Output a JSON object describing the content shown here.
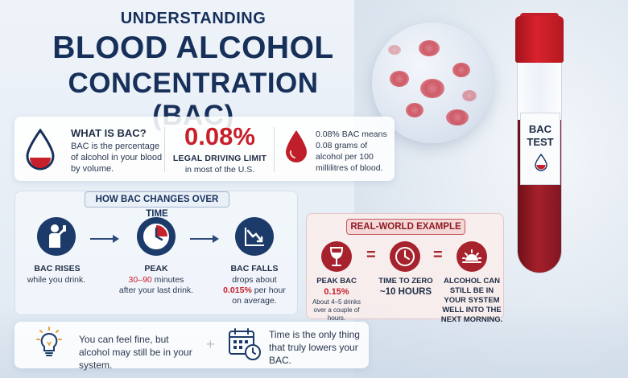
{
  "title": {
    "line1": "UNDERSTANDING",
    "line2": "BLOOD ALCOHOL",
    "line3": "CONCENTRATION (BAC)"
  },
  "tube_label": {
    "line1": "BAC",
    "line2": "TEST"
  },
  "info": {
    "what_title": "WHAT IS BAC?",
    "what_text": "BAC is the percentage of alcohol in your blood by volume.",
    "limit_value": "0.08%",
    "limit_title": "LEGAL DRIVING LIMIT",
    "limit_sub": "in most of the U.S.",
    "means_text": "0.08% BAC means 0.08 grams of alcohol per 100 millilitres of blood."
  },
  "timeline": {
    "heading": "HOW BAC CHANGES OVER TIME",
    "rises_title": "BAC RISES",
    "rises_desc": "while you drink.",
    "peak_title": "PEAK",
    "peak_range": "30–90",
    "peak_unit": "minutes",
    "peak_desc": "after your last drink.",
    "falls_title": "BAC FALLS",
    "falls_desc1": "drops about",
    "falls_rate": "0.015%",
    "falls_desc2": "per hour",
    "falls_desc3": "on average."
  },
  "example": {
    "heading": "REAL-WORLD EXAMPLE",
    "peak_title": "PEAK BAC",
    "peak_value": "0.15%",
    "peak_note": "About 4–5 drinks over a couple of hours.",
    "zero_title": "TIME TO ZERO",
    "zero_value": "~10 HOURS",
    "result": "ALCOHOL CAN STILL BE IN YOUR SYSTEM WELL INTO THE NEXT MORNING."
  },
  "tips": {
    "tip1": "You can feel fine, but alcohol may still be in your system.",
    "tip2": "Time is the only thing that truly lowers your BAC."
  },
  "colors": {
    "navy": "#17305a",
    "accent_red": "#c8202b",
    "icon_navy": "#1c3b6a",
    "icon_red": "#a6232d"
  }
}
